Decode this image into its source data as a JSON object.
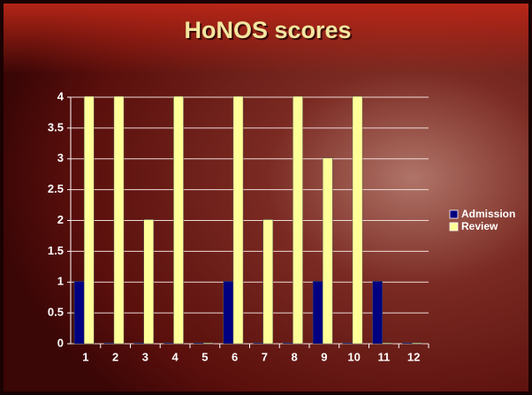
{
  "chart_data": {
    "type": "bar",
    "title": "HoNOS scores",
    "categories": [
      "1",
      "2",
      "3",
      "4",
      "5",
      "6",
      "7",
      "8",
      "9",
      "10",
      "11",
      "12"
    ],
    "series": [
      {
        "name": "Admission",
        "color": "#000080",
        "values": [
          1,
          0,
          0,
          0,
          0,
          1,
          0,
          0,
          1,
          0,
          1,
          0
        ]
      },
      {
        "name": "Review",
        "color": "#ffff99",
        "values": [
          4,
          4,
          2,
          4,
          0,
          4,
          2,
          4,
          3,
          4,
          0,
          0
        ]
      }
    ],
    "ylim": [
      0,
      4
    ],
    "yticks": [
      0,
      0.5,
      1,
      1.5,
      2,
      2.5,
      3,
      3.5,
      4
    ],
    "grid": true,
    "legend": "right"
  }
}
